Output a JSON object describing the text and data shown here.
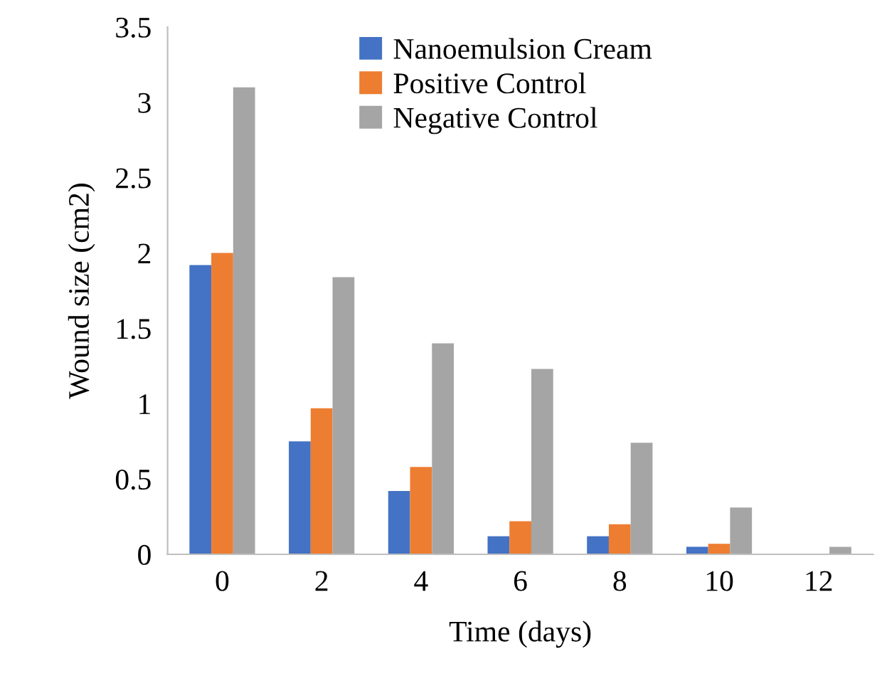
{
  "chart_data": {
    "type": "bar",
    "xlabel": "Time (days)",
    "ylabel": "Wound size (cm2)",
    "categories": [
      "0",
      "2",
      "4",
      "6",
      "8",
      "10",
      "12"
    ],
    "series": [
      {
        "name": "Nanoemulsion Cream",
        "color": "#4472c4",
        "values": [
          1.92,
          0.75,
          0.42,
          0.12,
          0.12,
          0.05,
          0
        ]
      },
      {
        "name": "Positive Control",
        "color": "#ed7d31",
        "values": [
          2.0,
          0.97,
          0.58,
          0.22,
          0.2,
          0.07,
          0
        ]
      },
      {
        "name": "Negative Control",
        "color": "#a5a5a5",
        "values": [
          3.1,
          1.84,
          1.4,
          1.23,
          0.74,
          0.31,
          0.05
        ]
      }
    ],
    "ylim": [
      0,
      3.5
    ],
    "yticks": [
      0,
      0.5,
      1,
      1.5,
      2,
      2.5,
      3,
      3.5
    ],
    "grid": false,
    "legend": "top"
  }
}
